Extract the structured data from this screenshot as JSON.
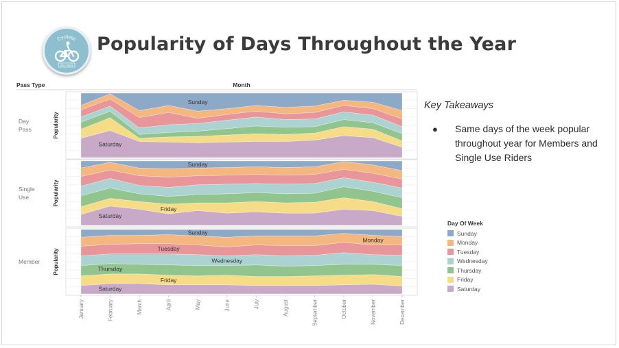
{
  "title": "Popularity of Days Throughout the Year",
  "logo": {
    "text_top": "Cyclistic",
    "text_bottom": "Bike Share"
  },
  "takeaways": {
    "heading": "Key Takeaways",
    "items": [
      "Same days of the week popular throughout year for Members and Single Use Riders"
    ]
  },
  "legend": {
    "title": "Day Of Week",
    "items": [
      {
        "label": "Sunday",
        "color": "#8ea8c7"
      },
      {
        "label": "Monday",
        "color": "#f3b77f"
      },
      {
        "label": "Tuesday",
        "color": "#e8969a"
      },
      {
        "label": "Wednesday",
        "color": "#acd3d2"
      },
      {
        "label": "Thursday",
        "color": "#92c58e"
      },
      {
        "label": "Friday",
        "color": "#f6dc86"
      },
      {
        "label": "Saturday",
        "color": "#c8aac8"
      }
    ]
  },
  "chart_data": {
    "type": "area",
    "stacked": "100%",
    "header_left": "Pass Type",
    "header_top": "Month",
    "ylabel": "Popularity",
    "x": [
      "January",
      "February",
      "March",
      "April",
      "May",
      "June",
      "July",
      "August",
      "September",
      "October",
      "November",
      "December"
    ],
    "stack_order": [
      "Saturday",
      "Friday",
      "Thursday",
      "Wednesday",
      "Tuesday",
      "Monday",
      "Sunday"
    ],
    "grid": true,
    "panels": [
      {
        "label": "Day Pass",
        "series": [
          {
            "name": "Saturday",
            "values": [
              0.3,
              0.42,
              0.25,
              0.24,
              0.23,
              0.24,
              0.25,
              0.25,
              0.27,
              0.34,
              0.31,
              0.16
            ]
          },
          {
            "name": "Friday",
            "values": [
              0.14,
              0.2,
              0.05,
              0.08,
              0.1,
              0.11,
              0.12,
              0.11,
              0.11,
              0.14,
              0.13,
              0.1
            ]
          },
          {
            "name": "Thursday",
            "values": [
              0.11,
              0.1,
              0.06,
              0.07,
              0.08,
              0.1,
              0.12,
              0.11,
              0.1,
              0.11,
              0.1,
              0.11
            ]
          },
          {
            "name": "Wednesday",
            "values": [
              0.08,
              0.08,
              0.1,
              0.12,
              0.12,
              0.13,
              0.14,
              0.12,
              0.12,
              0.12,
              0.12,
              0.11
            ]
          },
          {
            "name": "Tuesday",
            "values": [
              0.11,
              0.11,
              0.16,
              0.19,
              0.08,
              0.09,
              0.09,
              0.09,
              0.1,
              0.1,
              0.1,
              0.12
            ]
          },
          {
            "name": "Monday",
            "values": [
              0.07,
              0.08,
              0.11,
              0.11,
              0.11,
              0.09,
              0.09,
              0.1,
              0.1,
              0.08,
              0.1,
              0.13
            ]
          },
          {
            "name": "Sunday",
            "values": [
              0.19,
              0.01,
              0.27,
              0.19,
              0.28,
              0.24,
              0.19,
              0.22,
              0.2,
              0.11,
              0.14,
              0.27
            ]
          }
        ],
        "annotations": [
          {
            "text": "Sunday",
            "month": "May",
            "series": "Sunday"
          },
          {
            "text": "Saturday",
            "month": "February",
            "series": "Saturday"
          }
        ]
      },
      {
        "label": "Single Use",
        "series": [
          {
            "name": "Saturday",
            "values": [
              0.17,
              0.3,
              0.25,
              0.18,
              0.23,
              0.19,
              0.21,
              0.19,
              0.19,
              0.25,
              0.23,
              0.14
            ]
          },
          {
            "name": "Friday",
            "values": [
              0.12,
              0.12,
              0.12,
              0.15,
              0.12,
              0.16,
              0.16,
              0.16,
              0.17,
              0.18,
              0.14,
              0.12
            ]
          },
          {
            "name": "Thursday",
            "values": [
              0.17,
              0.16,
              0.12,
              0.12,
              0.13,
              0.14,
              0.14,
              0.14,
              0.14,
              0.17,
              0.16,
              0.17
            ]
          },
          {
            "name": "Wednesday",
            "values": [
              0.15,
              0.15,
              0.13,
              0.14,
              0.15,
              0.15,
              0.14,
              0.15,
              0.15,
              0.14,
              0.14,
              0.15
            ]
          },
          {
            "name": "Tuesday",
            "values": [
              0.15,
              0.13,
              0.15,
              0.16,
              0.14,
              0.14,
              0.14,
              0.14,
              0.14,
              0.13,
              0.14,
              0.14
            ]
          },
          {
            "name": "Monday",
            "values": [
              0.13,
              0.12,
              0.12,
              0.13,
              0.12,
              0.12,
              0.12,
              0.12,
              0.12,
              0.12,
              0.13,
              0.13
            ]
          },
          {
            "name": "Sunday",
            "values": [
              0.11,
              0.02,
              0.11,
              0.12,
              0.11,
              0.1,
              0.09,
              0.1,
              0.09,
              0.01,
              0.06,
              0.15
            ]
          }
        ],
        "annotations": [
          {
            "text": "Sunday",
            "month": "May",
            "series": "Sunday"
          },
          {
            "text": "Friday",
            "month": "April",
            "series": "Friday"
          },
          {
            "text": "Saturday",
            "month": "February",
            "series": "Saturday"
          }
        ]
      },
      {
        "label": "Member",
        "series": [
          {
            "name": "Saturday",
            "values": [
              0.13,
              0.16,
              0.16,
              0.14,
              0.14,
              0.14,
              0.13,
              0.13,
              0.13,
              0.14,
              0.15,
              0.12
            ]
          },
          {
            "name": "Friday",
            "values": [
              0.15,
              0.15,
              0.15,
              0.15,
              0.14,
              0.15,
              0.14,
              0.14,
              0.15,
              0.15,
              0.15,
              0.15
            ]
          },
          {
            "name": "Thursday",
            "values": [
              0.16,
              0.16,
              0.15,
              0.16,
              0.16,
              0.15,
              0.18,
              0.16,
              0.16,
              0.17,
              0.16,
              0.17
            ]
          },
          {
            "name": "Wednesday",
            "values": [
              0.15,
              0.15,
              0.16,
              0.17,
              0.17,
              0.15,
              0.16,
              0.16,
              0.16,
              0.18,
              0.15,
              0.16
            ]
          },
          {
            "name": "Tuesday",
            "values": [
              0.15,
              0.15,
              0.16,
              0.16,
              0.15,
              0.14,
              0.15,
              0.16,
              0.15,
              0.16,
              0.15,
              0.16
            ]
          },
          {
            "name": "Monday",
            "values": [
              0.14,
              0.14,
              0.13,
              0.14,
              0.14,
              0.15,
              0.14,
              0.15,
              0.15,
              0.14,
              0.15,
              0.13
            ]
          },
          {
            "name": "Sunday",
            "values": [
              0.12,
              0.09,
              0.09,
              0.08,
              0.1,
              0.12,
              0.1,
              0.1,
              0.1,
              0.06,
              0.09,
              0.11
            ]
          }
        ],
        "annotations": [
          {
            "text": "Sunday",
            "month": "May",
            "series": "Sunday"
          },
          {
            "text": "Monday",
            "month": "November",
            "series": "Monday"
          },
          {
            "text": "Tuesday",
            "month": "April",
            "series": "Tuesday"
          },
          {
            "text": "Wednesday",
            "month": "June",
            "series": "Wednesday"
          },
          {
            "text": "Thursday",
            "month": "February",
            "series": "Thursday"
          },
          {
            "text": "Friday",
            "month": "April",
            "series": "Friday"
          },
          {
            "text": "Saturday",
            "month": "February",
            "series": "Saturday"
          }
        ]
      }
    ]
  }
}
